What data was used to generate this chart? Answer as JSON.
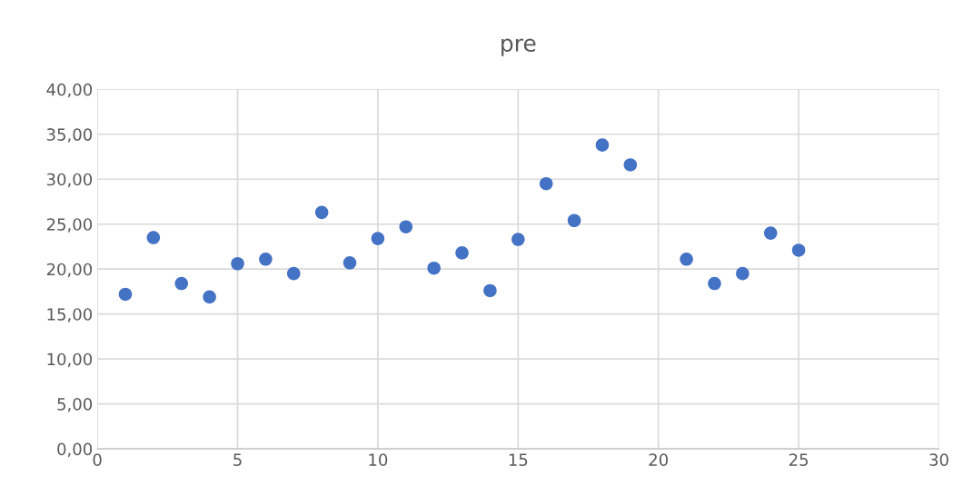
{
  "chart_data": {
    "type": "scatter",
    "title": "pre",
    "x": [
      1,
      2,
      3,
      4,
      5,
      6,
      7,
      8,
      9,
      10,
      11,
      12,
      13,
      14,
      15,
      16,
      17,
      18,
      19,
      21,
      22,
      23,
      24,
      25
    ],
    "values": [
      17.2,
      23.5,
      18.4,
      16.9,
      20.6,
      21.1,
      19.5,
      26.3,
      20.7,
      23.4,
      24.7,
      20.1,
      21.8,
      17.6,
      23.3,
      29.5,
      25.4,
      33.8,
      31.6,
      21.1,
      18.4,
      19.5,
      24.0,
      22.1
    ],
    "color": "#4472c4",
    "marker": "circle",
    "xlim": [
      0,
      30
    ],
    "xticks": [
      0,
      5,
      10,
      15,
      20,
      25,
      30
    ],
    "ylim": [
      0,
      40
    ],
    "yticks": [
      {
        "value": 0,
        "label": "0,00"
      },
      {
        "value": 5,
        "label": "5,00"
      },
      {
        "value": 10,
        "label": "10,00"
      },
      {
        "value": 15,
        "label": "15,00"
      },
      {
        "value": 20,
        "label": "20,00"
      },
      {
        "value": 25,
        "label": "25,00"
      },
      {
        "value": 30,
        "label": "30,00"
      },
      {
        "value": 35,
        "label": "35,00"
      },
      {
        "value": 40,
        "label": "40,00"
      }
    ],
    "grid": true
  }
}
